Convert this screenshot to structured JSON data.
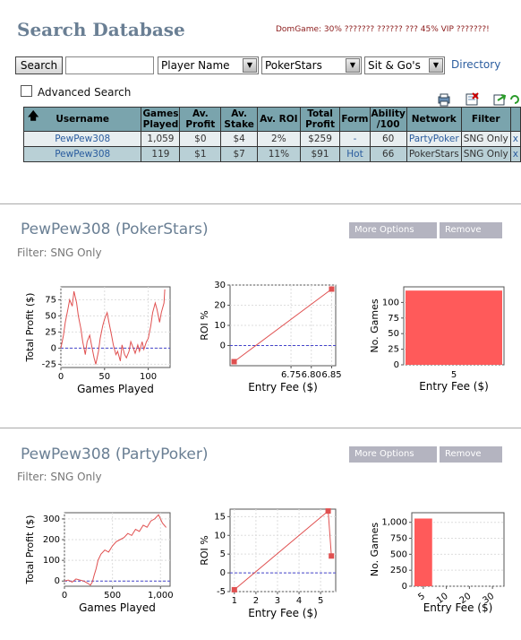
{
  "header": {
    "title": "Search Database",
    "promo": "DomGame: 30% ??????? ?????? ??? 45% VIP ???????!"
  },
  "search": {
    "button_label": "Search",
    "input_value": "",
    "field_select": "Player Name",
    "network_select": "PokerStars",
    "game_select": "Sit & Go's",
    "directory_link": "Directory",
    "advanced_label": "Advanced Search",
    "advanced_checked": false
  },
  "results": {
    "columns": [
      "Username",
      "Games Played",
      "Av. Profit",
      "Av. Stake",
      "Av. ROI",
      "Total Profit",
      "Form",
      "Ability /100",
      "Network",
      "Filter",
      ""
    ],
    "rows": [
      {
        "username": "PewPew308",
        "games": "1,059",
        "profit": "$0",
        "stake": "$4",
        "roi": "2%",
        "total": "$259",
        "form": "-",
        "ability": "60",
        "network": "PartyPoker",
        "filter": "SNG Only",
        "remove": "x"
      },
      {
        "username": "PewPew308",
        "games": "119",
        "profit": "$1",
        "stake": "$7",
        "roi": "11%",
        "total": "$91",
        "form": "Hot",
        "ability": "66",
        "network": "PokerStars",
        "filter": "SNG Only",
        "remove": "x"
      }
    ]
  },
  "sections": [
    {
      "title": "PewPew308 (PokerStars)",
      "filter": "Filter: SNG Only",
      "more_options": "More Options",
      "remove": "Remove"
    },
    {
      "title": "PewPew308 (PartyPoker)",
      "filter": "Filter: SNG Only",
      "more_options": "More Options",
      "remove": "Remove"
    }
  ],
  "chart_data": [
    {
      "type": "line",
      "section": "PokerStars",
      "xlabel": "Games Played",
      "ylabel": "Total Profit ($)",
      "xlim": [
        0,
        125
      ],
      "ylim": [
        -30,
        95
      ],
      "xticks": [
        0,
        50,
        100
      ],
      "yticks": [
        -25,
        0,
        25,
        50,
        75
      ],
      "x": [
        0,
        3,
        5,
        8,
        10,
        13,
        15,
        18,
        20,
        23,
        25,
        28,
        30,
        33,
        35,
        38,
        40,
        43,
        45,
        48,
        50,
        53,
        55,
        58,
        60,
        63,
        65,
        68,
        70,
        73,
        75,
        78,
        80,
        83,
        85,
        88,
        90,
        93,
        95,
        98,
        100,
        103,
        105,
        108,
        110,
        113,
        115,
        118,
        119
      ],
      "y": [
        0,
        20,
        40,
        60,
        75,
        65,
        88,
        70,
        50,
        30,
        10,
        -10,
        10,
        20,
        5,
        -15,
        -25,
        -5,
        15,
        35,
        45,
        55,
        40,
        20,
        5,
        -10,
        -5,
        -20,
        5,
        -10,
        -15,
        -5,
        10,
        0,
        -8,
        5,
        -5,
        10,
        -2,
        10,
        15,
        35,
        55,
        70,
        60,
        40,
        55,
        70,
        91
      ],
      "line_color": "#e05050"
    },
    {
      "type": "line",
      "section": "PokerStars",
      "xlabel": "Entry Fee ($)",
      "ylabel": "ROI %",
      "xlim": [
        6.6,
        6.86
      ],
      "ylim": [
        -10,
        30
      ],
      "xticks": [
        6.75,
        6.8,
        6.85
      ],
      "yticks": [
        0,
        10,
        20,
        30
      ],
      "x": [
        6.61,
        6.85
      ],
      "y": [
        -8,
        28
      ],
      "line_color": "#e05050"
    },
    {
      "type": "bar",
      "section": "PokerStars",
      "xlabel": "Entry Fee ($)",
      "ylabel": "No. Games",
      "categories": [
        "5"
      ],
      "values": [
        119
      ],
      "ylim": [
        0,
        125
      ],
      "yticks": [
        0,
        25,
        50,
        75,
        100
      ],
      "bar_color": "#ff5a5a"
    },
    {
      "type": "line",
      "section": "PartyPoker",
      "xlabel": "Games Played",
      "ylabel": "Total Profit ($)",
      "xlim": [
        0,
        1100
      ],
      "ylim": [
        -25,
        330
      ],
      "xticks": [
        0,
        500,
        1000
      ],
      "xtick_labels": [
        "0",
        "500",
        "1,000"
      ],
      "yticks": [
        0,
        100,
        200,
        300
      ],
      "x": [
        0,
        40,
        80,
        120,
        160,
        200,
        240,
        270,
        290,
        310,
        330,
        350,
        380,
        420,
        460,
        500,
        540,
        580,
        620,
        660,
        700,
        740,
        780,
        820,
        860,
        900,
        940,
        980,
        1020,
        1059
      ],
      "y": [
        0,
        5,
        -5,
        10,
        5,
        0,
        -10,
        -20,
        -5,
        30,
        60,
        100,
        130,
        150,
        140,
        170,
        190,
        200,
        210,
        230,
        220,
        250,
        240,
        270,
        260,
        290,
        300,
        320,
        280,
        259
      ],
      "line_color": "#e05050"
    },
    {
      "type": "line",
      "section": "PartyPoker",
      "xlabel": "Entry Fee ($)",
      "ylabel": "ROI %",
      "xlim": [
        0.8,
        5.7
      ],
      "ylim": [
        -5,
        17
      ],
      "xticks": [
        1,
        2,
        3,
        4,
        5
      ],
      "yticks": [
        -5,
        0,
        5,
        10,
        15
      ],
      "x": [
        1,
        5.35,
        5.5
      ],
      "y": [
        -4.5,
        16.5,
        4.5
      ],
      "line_color": "#e05050"
    },
    {
      "type": "bar",
      "section": "PartyPoker",
      "xlabel": "Entry Fee ($)",
      "ylabel": "No. Games",
      "categories": [
        "5",
        "10",
        "20",
        "30"
      ],
      "values": [
        1059,
        0,
        0,
        0
      ],
      "ylim": [
        0,
        1150
      ],
      "yticks": [
        0,
        250,
        500,
        750,
        1000
      ],
      "ytick_labels": [
        "0",
        "250",
        "500",
        "750",
        "1,000"
      ],
      "bar_color": "#ff5a5a"
    }
  ]
}
